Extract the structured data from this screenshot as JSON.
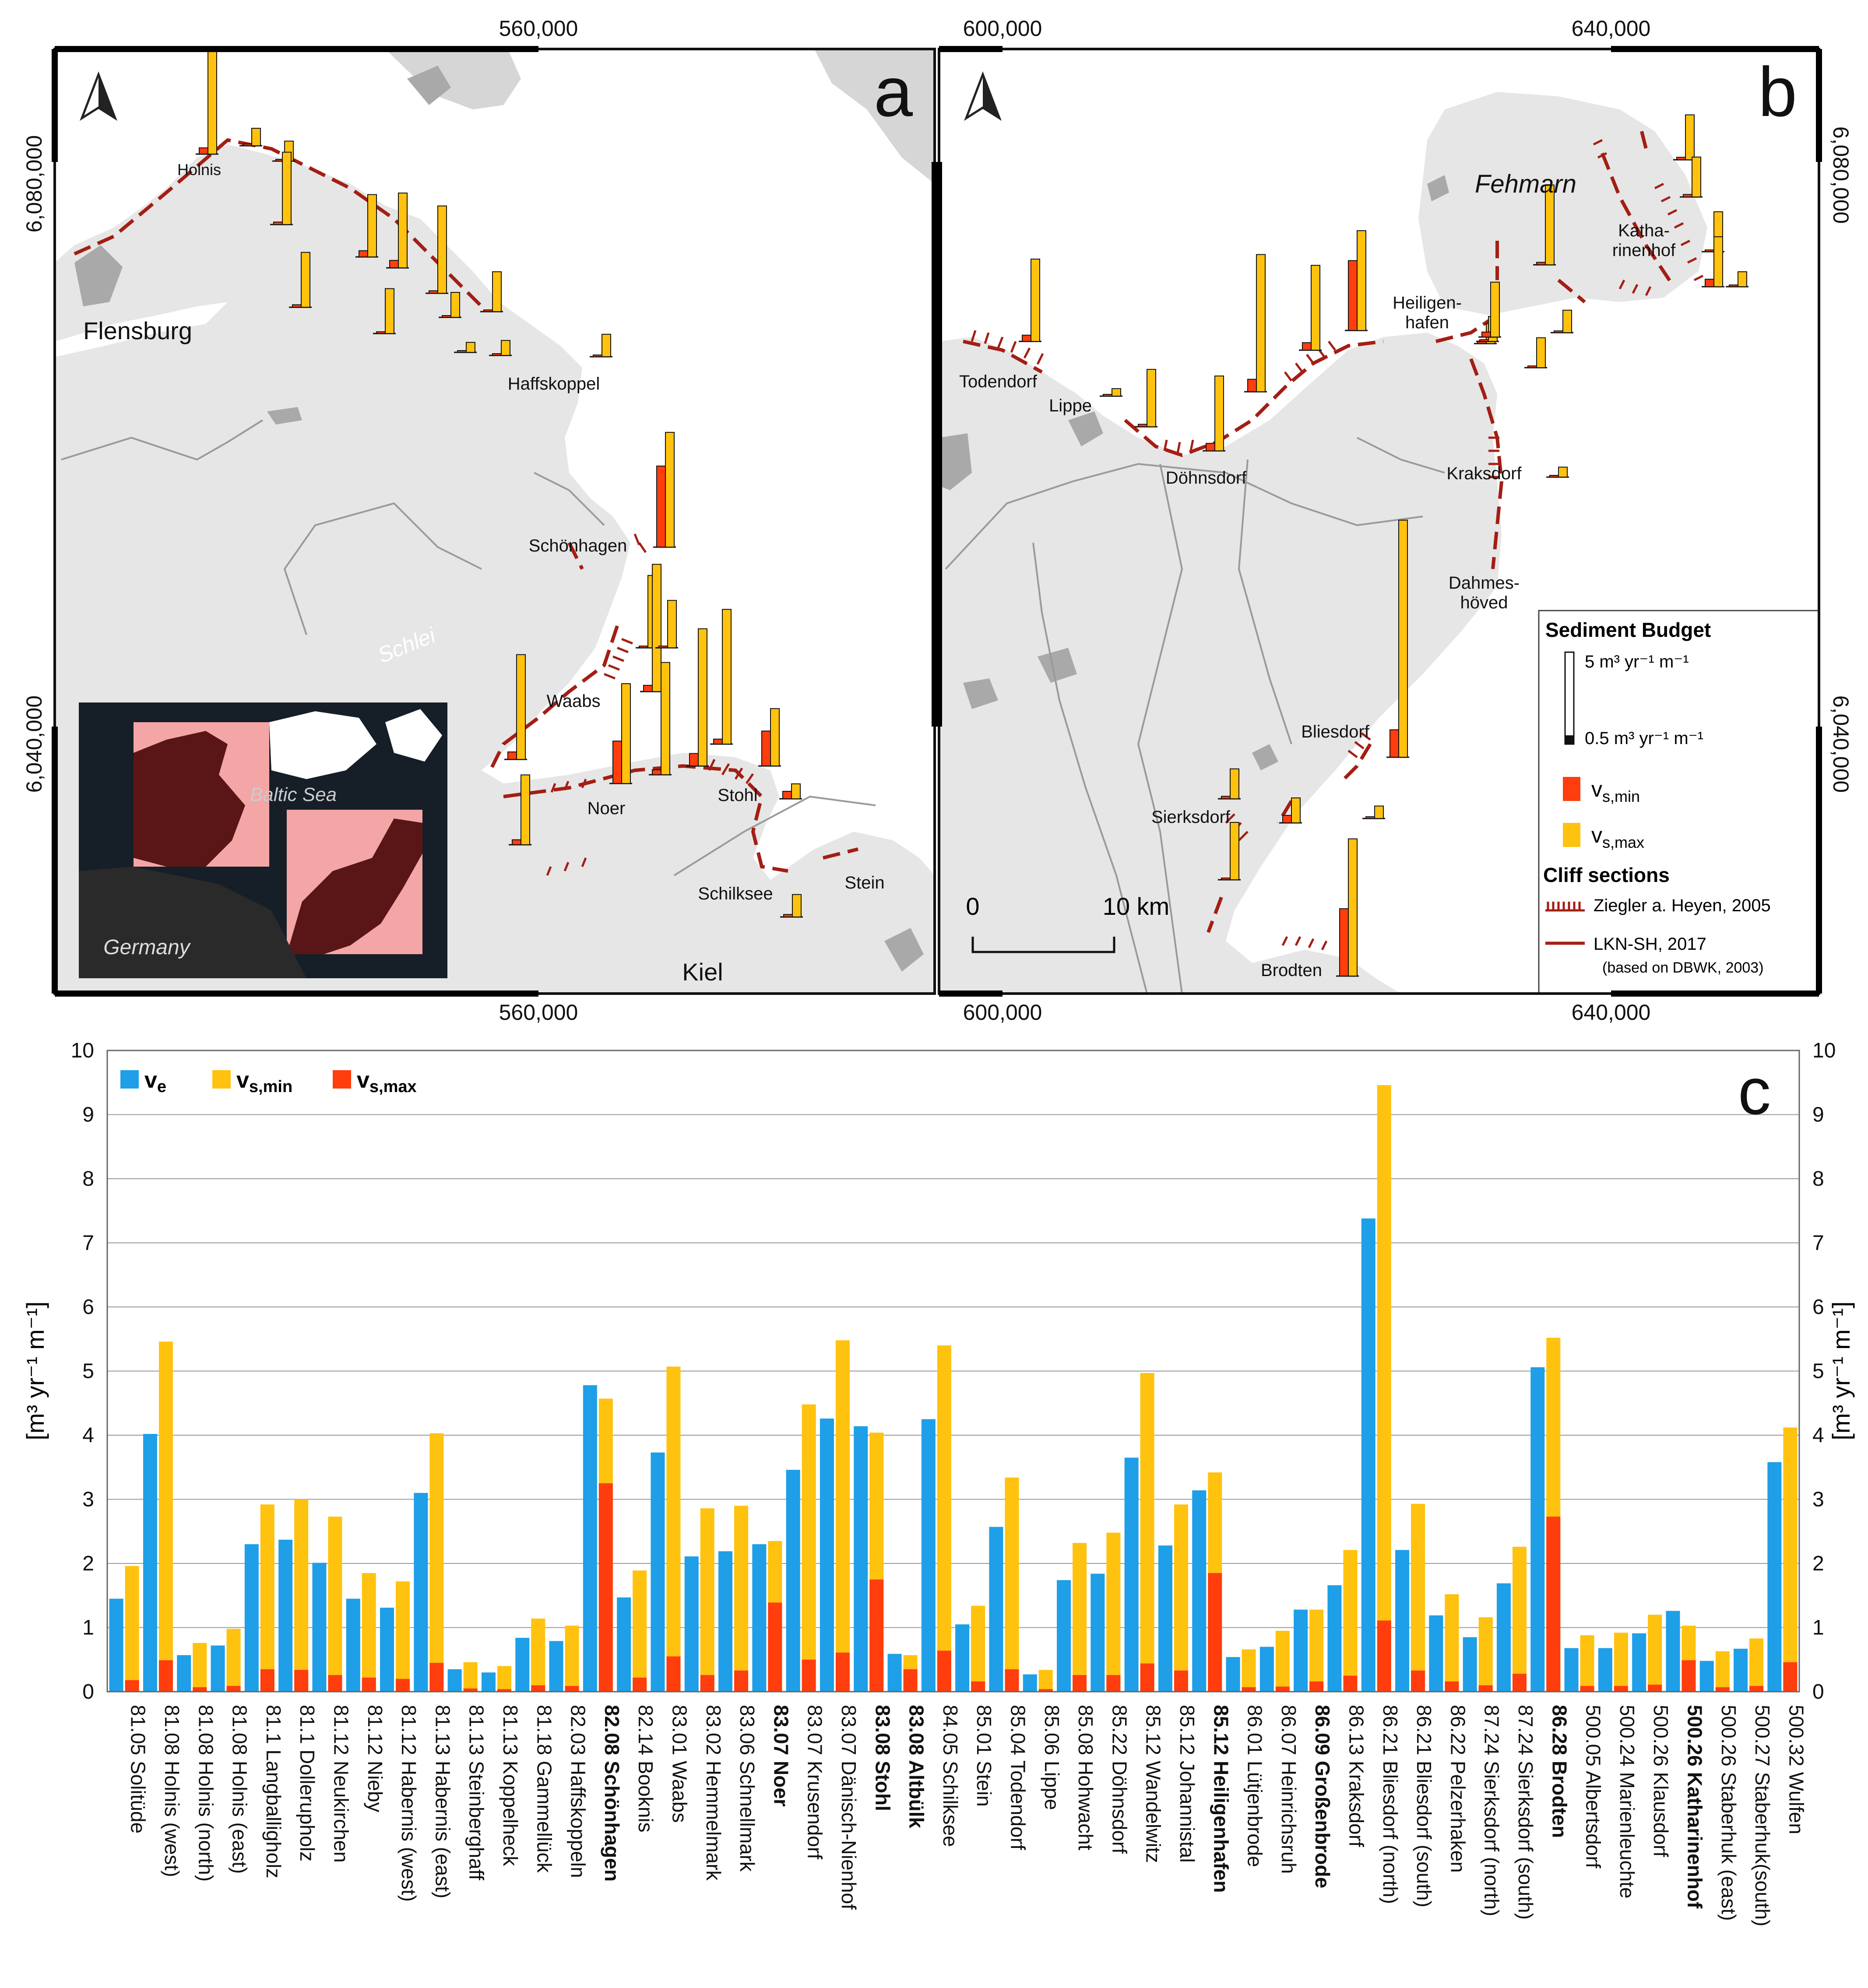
{
  "colors": {
    "ve": "#1e9fe8",
    "vs_min": "#ffc20e",
    "vs_max": "#ff3d0d",
    "cliff": "#a41e14",
    "land": "#e6e6e6",
    "water": "#ffffff",
    "lake": "#a9a9a9",
    "inset_dark": "#161e28",
    "inset_land": "#5a1617",
    "inset_pink": "#f4a6a6"
  },
  "map_axes": {
    "top_ticks": [
      "560,000",
      "600,000",
      "640,000"
    ],
    "bottom_ticks": [
      "560,000",
      "600,000",
      "640,000"
    ],
    "left_ticks": [
      "6,080,000",
      "6,040,000"
    ],
    "right_ticks": [
      "6,080,000",
      "6,040,000"
    ]
  },
  "panel_a": {
    "letter": "a",
    "north_icon": "north-arrow-icon",
    "places": [
      "Holnis",
      "Flensburg",
      "Haffskoppel",
      "Schönhagen",
      "Schlei",
      "Waabs",
      "Noer",
      "Stohl",
      "Schilksee",
      "Stein",
      "Kiel"
    ],
    "inset": {
      "sea": "Baltic Sea",
      "country": "Germany"
    },
    "bars": [
      {
        "min": 0.25,
        "max": 5.5
      },
      {
        "min": 0.05,
        "max": 0.7
      },
      {
        "min": 0.05,
        "max": 0.8
      },
      {
        "min": 0.1,
        "max": 2.9
      },
      {
        "min": 0.1,
        "max": 2.2
      },
      {
        "min": 0.25,
        "max": 2.5
      },
      {
        "min": 0.3,
        "max": 3.0
      },
      {
        "min": 0.05,
        "max": 1.8
      },
      {
        "min": 0.1,
        "max": 3.5
      },
      {
        "min": 0.05,
        "max": 1.0
      },
      {
        "min": 0.05,
        "max": 1.6
      },
      {
        "min": 0.05,
        "max": 0.4
      },
      {
        "min": 0.05,
        "max": 0.6
      },
      {
        "min": 0.05,
        "max": 0.9
      },
      {
        "min": 3.25,
        "max": 4.6
      },
      {
        "min": 0.05,
        "max": 2.9
      },
      {
        "min": 0.25,
        "max": 5.1
      },
      {
        "min": 0.05,
        "max": 1.9
      },
      {
        "min": 0.2,
        "max": 4.5
      },
      {
        "min": 0.5,
        "max": 5.5
      },
      {
        "min": 1.7,
        "max": 4.0
      },
      {
        "min": 0.2,
        "max": 5.4
      },
      {
        "min": 1.4,
        "max": 2.3
      },
      {
        "min": 0.3,
        "max": 4.2
      },
      {
        "min": 0.2,
        "max": 2.8
      },
      {
        "min": 0.3,
        "max": 0.6
      },
      {
        "min": 0.1,
        "max": 0.9
      }
    ]
  },
  "panel_b": {
    "letter": "b",
    "north_icon": "north-arrow-icon",
    "places": [
      "Fehmarn",
      "Katha-",
      "rinenhof",
      "Heiligen-",
      "hafen",
      "Todendorf",
      "Lippe",
      "Döhnsdorf",
      "Kraksdorf",
      "Dahmes-",
      "höved",
      "Bliesdorf",
      "Sierksdorf",
      "Brodten"
    ],
    "scale": {
      "start": "0",
      "end": "10 km"
    },
    "bars": [
      {
        "min": 0.25,
        "max": 3.3
      },
      {
        "min": 0.05,
        "max": 0.3
      },
      {
        "min": 0.1,
        "max": 2.3
      },
      {
        "min": 0.3,
        "max": 3.0
      },
      {
        "min": 0.5,
        "max": 5.5
      },
      {
        "min": 0.3,
        "max": 3.4
      },
      {
        "min": 2.8,
        "max": 4.0
      },
      {
        "min": 0.1,
        "max": 0.8
      },
      {
        "min": 0.05,
        "max": 1.0
      },
      {
        "min": 0.1,
        "max": 3.2
      },
      {
        "min": 0.2,
        "max": 2.2
      },
      {
        "min": 0.05,
        "max": 0.9
      },
      {
        "min": 0.05,
        "max": 1.2
      },
      {
        "min": 0.05,
        "max": 0.4
      },
      {
        "min": 0.1,
        "max": 1.8
      },
      {
        "min": 0.1,
        "max": 1.6
      },
      {
        "min": 0.05,
        "max": 1.6
      },
      {
        "min": 0.3,
        "max": 2.0
      },
      {
        "min": 1.1,
        "max": 9.5
      },
      {
        "min": 0.1,
        "max": 1.2
      },
      {
        "min": 0.05,
        "max": 2.3
      },
      {
        "min": 2.7,
        "max": 5.5
      },
      {
        "min": 0.3,
        "max": 1.0
      },
      {
        "min": 0.05,
        "max": 0.5
      },
      {
        "min": 0.05,
        "max": 0.6
      }
    ]
  },
  "legend_box": {
    "title": "Sediment Budget",
    "scale_top": "5 m³ yr⁻¹ m⁻¹",
    "scale_bottom": "0.5 m³ yr⁻¹ m⁻¹",
    "vs_min": "v",
    "vs_min_sub": "s,min",
    "vs_max": "v",
    "vs_max_sub": "s,max",
    "cliff_title": "Cliff sections",
    "ziegler": "Ziegler a. Heyen, 2005",
    "lkn": "LKN-SH, 2017",
    "lkn_note": "(based on DBWK, 2003)"
  },
  "chart_data": {
    "type": "bar",
    "panel_letter": "c",
    "ylabel": "[m³ yr⁻¹ m⁻¹]",
    "ylim": [
      0,
      10
    ],
    "yticks": [
      "0",
      "1",
      "2",
      "3",
      "4",
      "5",
      "6",
      "7",
      "8",
      "9",
      "10"
    ],
    "grid": true,
    "legend": {
      "ve": "v",
      "ve_sub": "e",
      "vs_min": "v",
      "vs_min_sub": "s,min",
      "vs_max": "v",
      "vs_max_sub": "s,max",
      "placement": "top-left"
    },
    "categories": [
      {
        "label": "81.05 Solitüde",
        "bold": false
      },
      {
        "label": "81.08 Holnis  (west)",
        "bold": false
      },
      {
        "label": "81.08 Holnis (north)",
        "bold": false
      },
      {
        "label": "81.08 Holnis (east)",
        "bold": false
      },
      {
        "label": "81.1 Langballigholz",
        "bold": false
      },
      {
        "label": "81.1 Dollerupholz",
        "bold": false
      },
      {
        "label": "81.12 Neukirchen",
        "bold": false
      },
      {
        "label": "81.12 Nieby",
        "bold": false
      },
      {
        "label": "81.12 Habernis (west)",
        "bold": false
      },
      {
        "label": "81.13 Habernis (east)",
        "bold": false
      },
      {
        "label": "81.13 Steinberghaff",
        "bold": false
      },
      {
        "label": "81.13 Koppelheck",
        "bold": false
      },
      {
        "label": "81.18 Gammellück",
        "bold": false
      },
      {
        "label": "82.03 Haffskoppeln",
        "bold": false
      },
      {
        "label": "82.08 Schönhagen",
        "bold": true
      },
      {
        "label": "82.14 Booknis",
        "bold": false
      },
      {
        "label": "83.01 Waabs",
        "bold": false
      },
      {
        "label": "83.02 Hemmelmark",
        "bold": false
      },
      {
        "label": "83.06 Schnellmark",
        "bold": false
      },
      {
        "label": "83.07 Noer",
        "bold": true
      },
      {
        "label": "83.07 Krusendorf",
        "bold": false
      },
      {
        "label": "83.07 Dänisch-Nienhof",
        "bold": false
      },
      {
        "label": "83.08 Stohl",
        "bold": true
      },
      {
        "label": "83.08 Altbülk",
        "bold": true
      },
      {
        "label": "84.05 Schilksee",
        "bold": false
      },
      {
        "label": "85.01 Stein",
        "bold": false
      },
      {
        "label": "85.04 Todendorf",
        "bold": false
      },
      {
        "label": "85.06 Lippe",
        "bold": false
      },
      {
        "label": "85.08 Hohwacht",
        "bold": false
      },
      {
        "label": "85.22 Döhnsdorf",
        "bold": false
      },
      {
        "label": "85.12 Wandelwitz",
        "bold": false
      },
      {
        "label": "85.12 Johannistal",
        "bold": false
      },
      {
        "label": "85.12 Heiligenhafen",
        "bold": true
      },
      {
        "label": "86.01 Lütjenbrode",
        "bold": false
      },
      {
        "label": "86.07 Heinrichsruh",
        "bold": false
      },
      {
        "label": "86.09 Großenbrode",
        "bold": true
      },
      {
        "label": "86.13 Kraksdorf",
        "bold": false
      },
      {
        "label": "86.21 Bliesdorf (north)",
        "bold": false
      },
      {
        "label": "86.21 Bliesdorf  (south)",
        "bold": false
      },
      {
        "label": "86.22 Pelzerhaken",
        "bold": false
      },
      {
        "label": "87.24 Sierksdorf (north)",
        "bold": false
      },
      {
        "label": "87.24 Sierksdorf (south)",
        "bold": false
      },
      {
        "label": "86.28 Brodten",
        "bold": true
      },
      {
        "label": "500.05 Albertsdorf",
        "bold": false
      },
      {
        "label": "500.24 Marienleuchte",
        "bold": false
      },
      {
        "label": "500.26 Klausdorf",
        "bold": false
      },
      {
        "label": "500.26 Katharinenhof",
        "bold": true
      },
      {
        "label": "500.26 Staberhuk (east)",
        "bold": false
      },
      {
        "label": "500.27 Staberhuk(south)",
        "bold": false
      },
      {
        "label": "500.32 Wulfen",
        "bold": false
      }
    ],
    "series": [
      {
        "name": "ve",
        "values": [
          1.45,
          4.02,
          0.57,
          0.72,
          2.3,
          2.37,
          2.01,
          1.45,
          1.31,
          3.1,
          0.35,
          0.3,
          0.84,
          0.79,
          4.78,
          1.47,
          3.73,
          2.11,
          2.19,
          2.3,
          3.46,
          4.26,
          4.14,
          0.59,
          4.25,
          1.05,
          2.57,
          0.27,
          1.74,
          1.84,
          3.65,
          2.28,
          3.14,
          0.54,
          0.7,
          1.28,
          1.66,
          7.38,
          2.21,
          1.19,
          0.85,
          1.69,
          5.06,
          0.68,
          0.68,
          0.91,
          1.26,
          0.48,
          0.67,
          3.58
        ]
      },
      {
        "name": "vs_min",
        "values": [
          1.96,
          5.46,
          0.76,
          0.98,
          2.92,
          3.0,
          2.73,
          1.85,
          1.72,
          4.03,
          0.46,
          0.4,
          1.14,
          1.03,
          4.57,
          1.89,
          5.07,
          2.86,
          2.9,
          2.35,
          4.48,
          5.48,
          4.04,
          0.57,
          5.4,
          1.34,
          3.34,
          0.34,
          2.32,
          2.48,
          4.97,
          2.92,
          3.42,
          0.66,
          0.95,
          1.28,
          2.21,
          9.46,
          2.93,
          1.52,
          1.16,
          2.26,
          5.52,
          0.88,
          0.92,
          1.2,
          1.03,
          0.63,
          0.83,
          4.12
        ]
      },
      {
        "name": "vs_max",
        "values": [
          0.18,
          0.49,
          0.07,
          0.09,
          0.35,
          0.34,
          0.26,
          0.22,
          0.2,
          0.45,
          0.05,
          0.04,
          0.1,
          0.09,
          3.25,
          0.22,
          0.55,
          0.26,
          0.33,
          1.39,
          0.5,
          0.61,
          1.75,
          0.35,
          0.64,
          0.16,
          0.35,
          0.04,
          0.26,
          0.26,
          0.44,
          0.33,
          1.85,
          0.07,
          0.08,
          0.16,
          0.25,
          1.11,
          0.33,
          0.16,
          0.1,
          0.28,
          2.73,
          0.09,
          0.09,
          0.11,
          0.49,
          0.07,
          0.09,
          0.46
        ]
      }
    ]
  }
}
